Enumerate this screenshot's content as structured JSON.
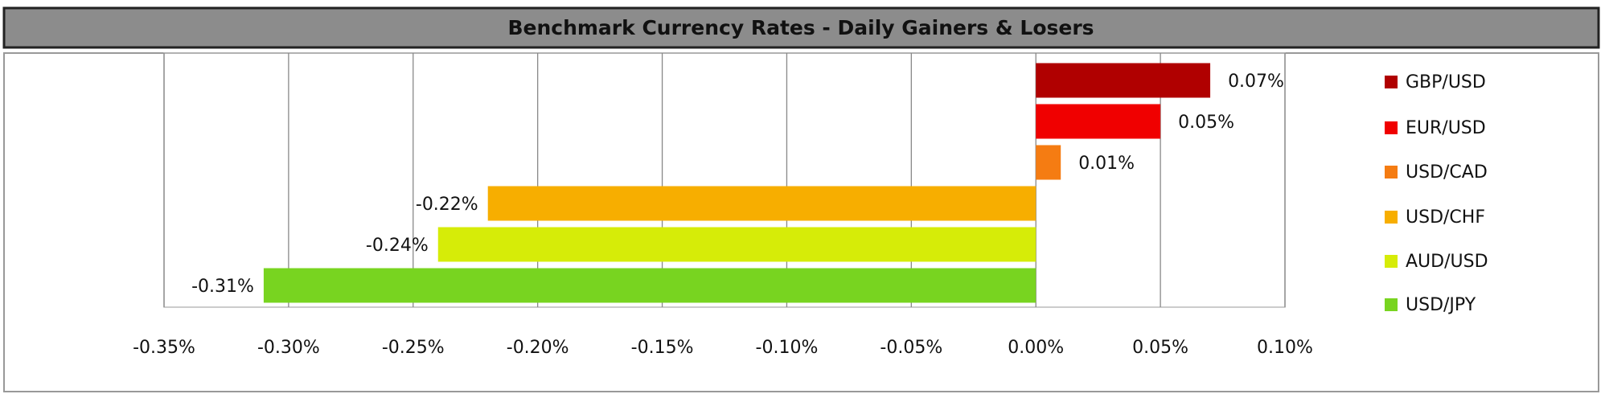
{
  "chart_data": {
    "type": "bar",
    "orientation": "horizontal",
    "title": "Benchmark Currency Rates - Daily Gainers & Losers",
    "categories": [
      "GBP/USD",
      "EUR/USD",
      "USD/CAD",
      "USD/CHF",
      "AUD/USD",
      "USD/JPY"
    ],
    "values": [
      0.07,
      0.05,
      0.01,
      -0.22,
      -0.24,
      -0.31
    ],
    "value_labels": [
      "0.07%",
      "0.05%",
      "0.01%",
      "-0.22%",
      "-0.24%",
      "-0.31%"
    ],
    "colors": [
      "#b00000",
      "#f00000",
      "#f57c12",
      "#f7ae00",
      "#d6ec08",
      "#78d420"
    ],
    "xlim": [
      -0.35,
      0.1
    ],
    "xticks": [
      {
        "value": -0.35,
        "label": "-0.35%"
      },
      {
        "value": -0.3,
        "label": "-0.30%"
      },
      {
        "value": -0.25,
        "label": "-0.25%"
      },
      {
        "value": -0.2,
        "label": "-0.20%"
      },
      {
        "value": -0.15,
        "label": "-0.15%"
      },
      {
        "value": -0.1,
        "label": "-0.10%"
      },
      {
        "value": -0.05,
        "label": "-0.05%"
      },
      {
        "value": 0,
        "label": "0.00%"
      },
      {
        "value": 0.05,
        "label": "0.05%"
      },
      {
        "value": 0.1,
        "label": "0.10%"
      }
    ],
    "grid": true,
    "legend": "right"
  }
}
